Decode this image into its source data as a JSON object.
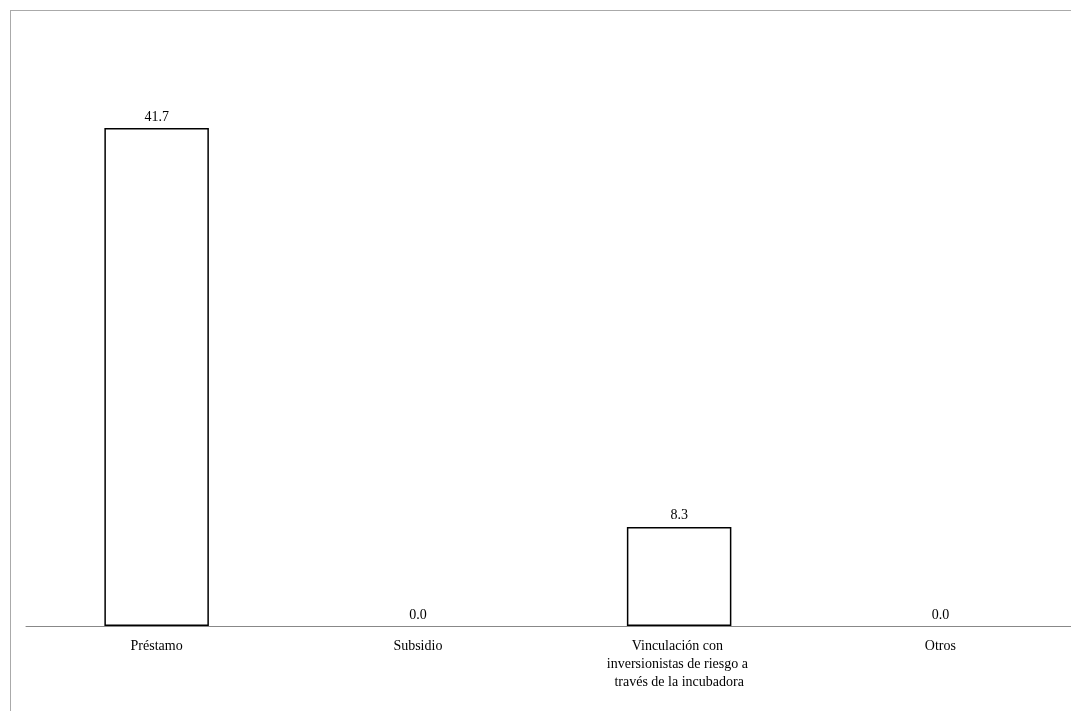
{
  "chart_data": {
    "type": "bar",
    "categories": [
      "Préstamo",
      "Subsidio",
      "Vinculación con inversionistas de riesgo a través de la incubadora",
      "Otros"
    ],
    "values": [
      41.7,
      0,
      8.3,
      0
    ],
    "value_labels": [
      "41.7",
      "0.0",
      "8.3",
      "0.0"
    ],
    "color": "#ffffff",
    "grid": false
  }
}
